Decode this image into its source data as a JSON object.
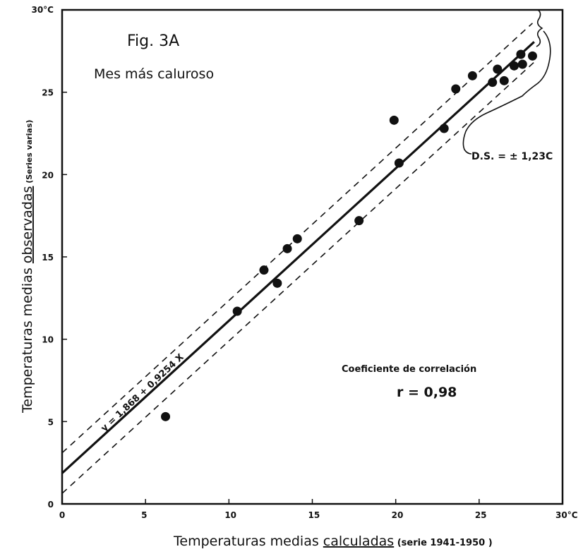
{
  "chart_data": {
    "type": "scatter",
    "figure_label": "Fig. 3A",
    "title": "Mes más caluroso",
    "xlabel": {
      "main": "Temperaturas medias ",
      "underlined": "calculadas",
      "note": " (serie 1941-1950 )"
    },
    "ylabel": {
      "main": "Temperaturas medias ",
      "underlined": "observadas",
      "note": " (Series varias)"
    },
    "xlim": [
      0,
      30
    ],
    "ylim": [
      0,
      30
    ],
    "x_ticks": [
      {
        "v": 0,
        "label": "0"
      },
      {
        "v": 5,
        "label": "5"
      },
      {
        "v": 10,
        "label": "10"
      },
      {
        "v": 15,
        "label": "15"
      },
      {
        "v": 20,
        "label": "20"
      },
      {
        "v": 25,
        "label": "25"
      },
      {
        "v": 30,
        "label": "30°C"
      }
    ],
    "y_ticks": [
      {
        "v": 0,
        "label": "0"
      },
      {
        "v": 5,
        "label": "5"
      },
      {
        "v": 10,
        "label": "10"
      },
      {
        "v": 15,
        "label": "15"
      },
      {
        "v": 20,
        "label": "20"
      },
      {
        "v": 25,
        "label": "25"
      },
      {
        "v": 30,
        "label": "30°C"
      }
    ],
    "points": [
      {
        "x": 6.2,
        "y": 5.3
      },
      {
        "x": 10.5,
        "y": 11.7
      },
      {
        "x": 12.1,
        "y": 14.2
      },
      {
        "x": 12.9,
        "y": 13.4
      },
      {
        "x": 13.5,
        "y": 15.5
      },
      {
        "x": 14.1,
        "y": 16.1
      },
      {
        "x": 17.8,
        "y": 17.2
      },
      {
        "x": 19.9,
        "y": 23.3
      },
      {
        "x": 20.2,
        "y": 20.7
      },
      {
        "x": 22.9,
        "y": 22.8
      },
      {
        "x": 23.6,
        "y": 25.2
      },
      {
        "x": 24.6,
        "y": 26.0
      },
      {
        "x": 25.8,
        "y": 25.6
      },
      {
        "x": 26.1,
        "y": 26.4
      },
      {
        "x": 26.5,
        "y": 25.7
      },
      {
        "x": 27.1,
        "y": 26.6
      },
      {
        "x": 27.5,
        "y": 27.3
      },
      {
        "x": 27.6,
        "y": 26.7
      },
      {
        "x": 28.2,
        "y": 27.2
      }
    ],
    "regression": {
      "intercept": 1.868,
      "slope": 0.9254,
      "x_range": [
        0,
        28.3
      ],
      "label": "y = 1,868 + 0,9254 X"
    },
    "std_dev": {
      "value": 1.23,
      "label": "D.S. = ± 1,23C"
    },
    "correlation": {
      "label": "Coeficiente de correlación",
      "value_text": "r = 0,98"
    }
  }
}
